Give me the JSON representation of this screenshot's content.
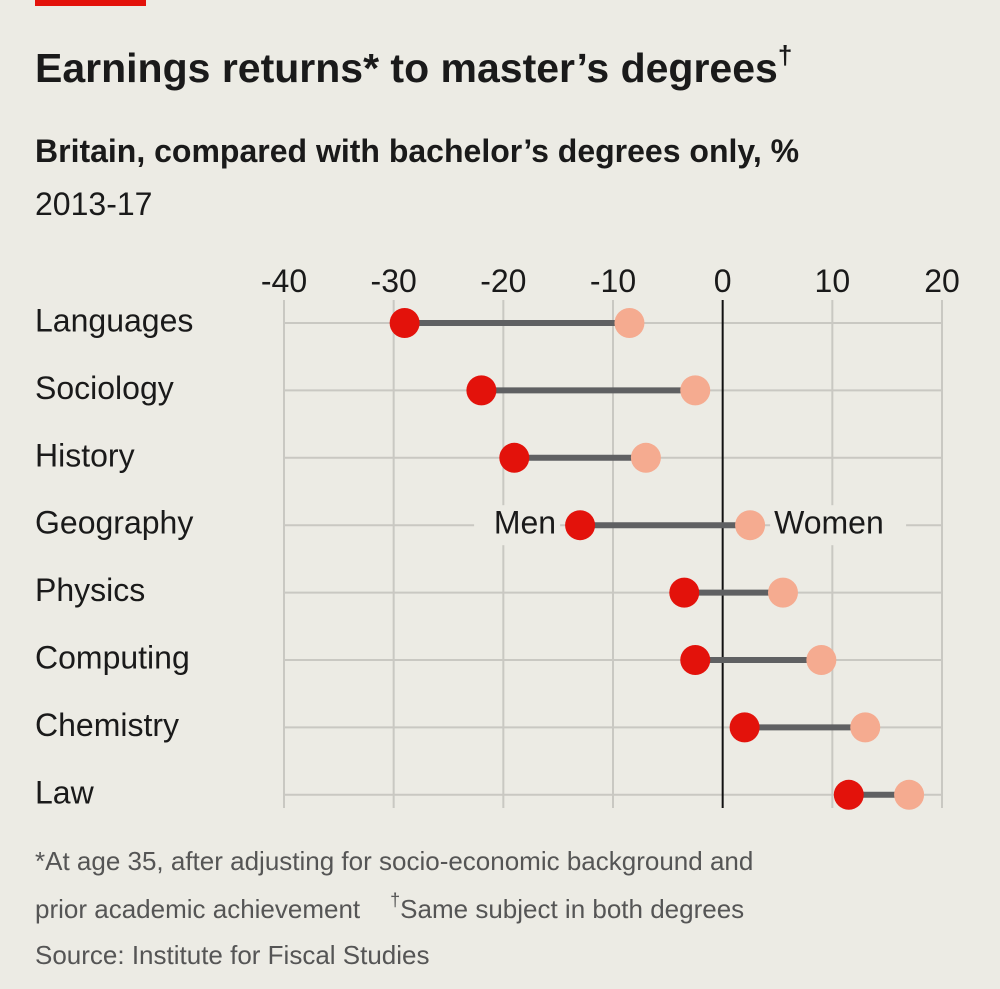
{
  "chart_data": {
    "type": "dumbbell",
    "title": "Earnings returns* to master’s degrees",
    "title_mark": "†",
    "subtitle": "Britain, compared with bachelor’s degrees only, %",
    "period": "2013-17",
    "categories": [
      "Languages",
      "Sociology",
      "History",
      "Geography",
      "Physics",
      "Computing",
      "Chemistry",
      "Law"
    ],
    "series": [
      {
        "name": "Men",
        "color": "#e3120b",
        "values": [
          -29,
          -22,
          -19,
          -13,
          -3.5,
          -2.5,
          2,
          11.5
        ]
      },
      {
        "name": "Women",
        "color": "#f5ab90",
        "values": [
          -8.5,
          -2.5,
          -7,
          2.5,
          5.5,
          9,
          13,
          17
        ]
      }
    ],
    "xlim": [
      -40,
      20
    ],
    "xticks": [
      -40,
      -30,
      -20,
      -10,
      0,
      10,
      20
    ],
    "grid": true,
    "footnotes": [
      "*At age 35, after adjusting for socio-economic background and",
      "prior academic achievement"
    ],
    "footnote2_mark": "†",
    "footnote2": "Same subject in both degrees",
    "source": "Source: Institute for Fiscal Studies"
  }
}
